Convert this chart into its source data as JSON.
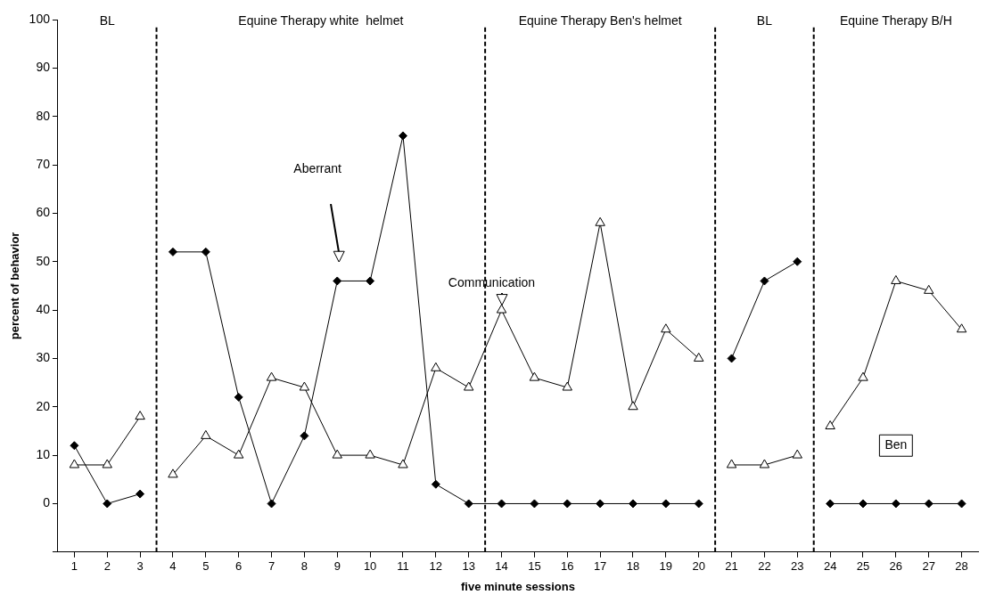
{
  "chart_data": {
    "type": "line",
    "xlabel": "five minute sessions",
    "ylabel": "percent of behavior",
    "xlim": [
      0.5,
      28.5
    ],
    "xticks": [
      1,
      2,
      3,
      4,
      5,
      6,
      7,
      8,
      9,
      10,
      11,
      12,
      13,
      14,
      15,
      16,
      17,
      18,
      19,
      20,
      21,
      22,
      23,
      24,
      25,
      26,
      27,
      28
    ],
    "ylim": [
      -10,
      100
    ],
    "yticks": [
      {
        "value": -10,
        "label": null
      },
      0,
      10,
      20,
      30,
      40,
      50,
      60,
      70,
      80,
      90,
      100
    ],
    "grid": false,
    "legend": false,
    "series": [
      {
        "color": "#000000",
        "marker": "diamond",
        "x": [
          1,
          2,
          3
        ],
        "values": [
          12,
          0,
          2
        ]
      },
      {
        "color": "#000000",
        "marker": "diamond",
        "x": [
          4,
          5,
          6,
          7,
          8,
          9,
          10,
          11,
          12,
          13,
          14,
          15,
          16,
          17,
          18,
          19,
          20
        ],
        "values": [
          52,
          52,
          22,
          0,
          14,
          46,
          46,
          76,
          4,
          0,
          0,
          0,
          0,
          0,
          0,
          0,
          0
        ]
      },
      {
        "color": "#000000",
        "marker": "diamond",
        "x": [
          21,
          22,
          23
        ],
        "values": [
          30,
          46,
          50
        ]
      },
      {
        "color": "#000000",
        "marker": "diamond",
        "x": [
          24,
          25,
          26,
          27,
          28
        ],
        "values": [
          0,
          0,
          0,
          0,
          0
        ]
      },
      {
        "color": "#000000",
        "marker": "triangle",
        "x": [
          1,
          2,
          3
        ],
        "values": [
          8,
          8,
          18
        ]
      },
      {
        "color": "#000000",
        "marker": "triangle",
        "x": [
          4,
          5,
          6,
          7,
          8,
          9,
          10,
          11,
          12,
          13,
          14,
          15,
          16,
          17,
          18,
          19,
          20
        ],
        "values": [
          6,
          14,
          10,
          26,
          24,
          10,
          10,
          8,
          28,
          24,
          40,
          26,
          24,
          58,
          20,
          36,
          30
        ]
      },
      {
        "color": "#000000",
        "marker": "triangle",
        "x": [
          21,
          22,
          23
        ],
        "values": [
          8,
          8,
          10
        ]
      },
      {
        "color": "#000000",
        "marker": "triangle",
        "x": [
          24,
          25,
          26,
          27,
          28
        ],
        "values": [
          16,
          26,
          46,
          44,
          36
        ]
      }
    ],
    "ref_lines": [
      {
        "axis": "x",
        "value": 3.5,
        "line_style": "dashed"
      },
      {
        "axis": "x",
        "value": 13.5,
        "line_style": "dashed"
      },
      {
        "axis": "x",
        "value": 20.5,
        "line_style": "dashed"
      },
      {
        "axis": "x",
        "value": 23.5,
        "line_style": "dashed"
      }
    ],
    "annotations": [
      "BL",
      "Equine Therapy white  helmet",
      "Equine Therapy Ben's helmet",
      "BL",
      "Equine Therapy B/H",
      "Aberrant",
      "Communication",
      "Ben"
    ]
  }
}
